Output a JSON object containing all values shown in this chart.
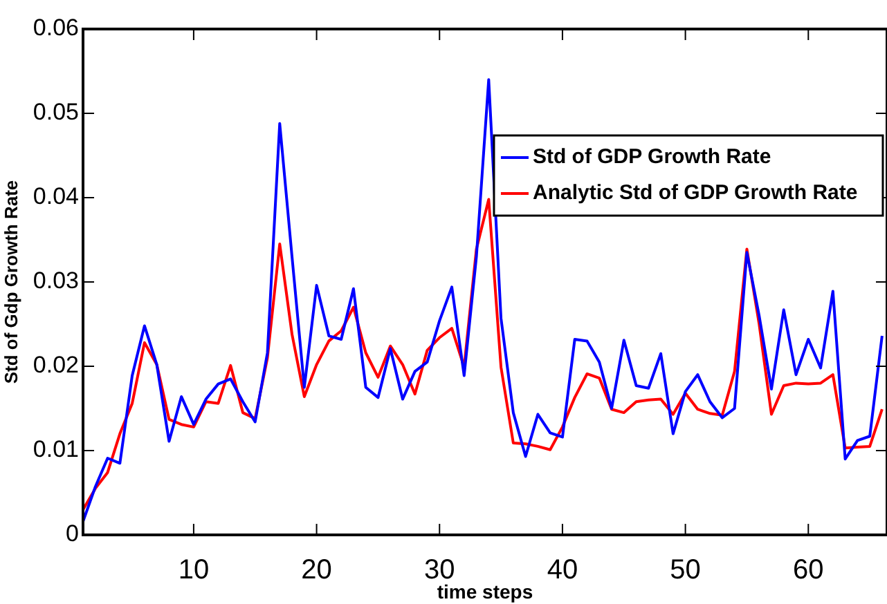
{
  "chart_data": {
    "type": "line",
    "xlabel": "time steps",
    "ylabel": "Std of Gdp Growth Rate",
    "x": [
      1,
      2,
      3,
      4,
      5,
      6,
      7,
      8,
      9,
      10,
      11,
      12,
      13,
      14,
      15,
      16,
      17,
      18,
      19,
      20,
      21,
      22,
      23,
      24,
      25,
      26,
      27,
      28,
      29,
      30,
      31,
      32,
      33,
      34,
      35,
      36,
      37,
      38,
      39,
      40,
      41,
      42,
      43,
      44,
      45,
      46,
      47,
      48,
      49,
      50,
      51,
      52,
      53,
      54,
      55,
      56,
      57,
      58,
      59,
      60,
      61,
      62,
      63,
      64,
      65,
      66
    ],
    "series": [
      {
        "name": "Std of GDP Growth Rate",
        "color": "#0000ff",
        "values": [
          0.0016,
          0.0057,
          0.0091,
          0.0085,
          0.0189,
          0.0248,
          0.0202,
          0.0111,
          0.0164,
          0.0131,
          0.0161,
          0.0179,
          0.0185,
          0.0158,
          0.0134,
          0.0216,
          0.0488,
          0.033,
          0.0175,
          0.0296,
          0.0236,
          0.0232,
          0.0292,
          0.0175,
          0.0163,
          0.0221,
          0.0161,
          0.0194,
          0.0205,
          0.0254,
          0.0294,
          0.0189,
          0.033,
          0.054,
          0.0257,
          0.0145,
          0.0093,
          0.0143,
          0.0121,
          0.0116,
          0.0232,
          0.023,
          0.0205,
          0.015,
          0.0231,
          0.0177,
          0.0174,
          0.0215,
          0.012,
          0.017,
          0.019,
          0.0158,
          0.0139,
          0.015,
          0.0335,
          0.026,
          0.0173,
          0.0267,
          0.019,
          0.0232,
          0.0198,
          0.0289,
          0.009,
          0.0112,
          0.0117,
          0.0236
        ]
      },
      {
        "name": "Analytic Std of GDP Growth Rate",
        "color": "#ff0000",
        "values": [
          0.003,
          0.0055,
          0.0074,
          0.012,
          0.0156,
          0.0228,
          0.0202,
          0.0137,
          0.0131,
          0.0128,
          0.0158,
          0.0156,
          0.0201,
          0.0145,
          0.0138,
          0.021,
          0.0345,
          0.0238,
          0.0164,
          0.0202,
          0.023,
          0.0242,
          0.027,
          0.0216,
          0.0187,
          0.0224,
          0.0202,
          0.0167,
          0.0219,
          0.0234,
          0.0245,
          0.0199,
          0.0339,
          0.0398,
          0.0199,
          0.0109,
          0.0108,
          0.0105,
          0.0101,
          0.0128,
          0.0163,
          0.0191,
          0.0186,
          0.0149,
          0.0145,
          0.0158,
          0.016,
          0.0161,
          0.0143,
          0.0168,
          0.0149,
          0.0144,
          0.0142,
          0.0194,
          0.0339,
          0.025,
          0.0143,
          0.0177,
          0.018,
          0.0179,
          0.018,
          0.019,
          0.0103,
          0.0104,
          0.0105,
          0.0149
        ]
      }
    ],
    "xlim": [
      1,
      66.4
    ],
    "xticks": [
      10,
      20,
      30,
      40,
      50,
      60
    ],
    "ylim": [
      0,
      0.06
    ],
    "yticks": [
      0,
      0.01,
      0.02,
      0.03,
      0.04,
      0.05,
      0.06
    ],
    "legend": "top right",
    "grid": false,
    "marker": "none",
    "line_style": "solid"
  }
}
